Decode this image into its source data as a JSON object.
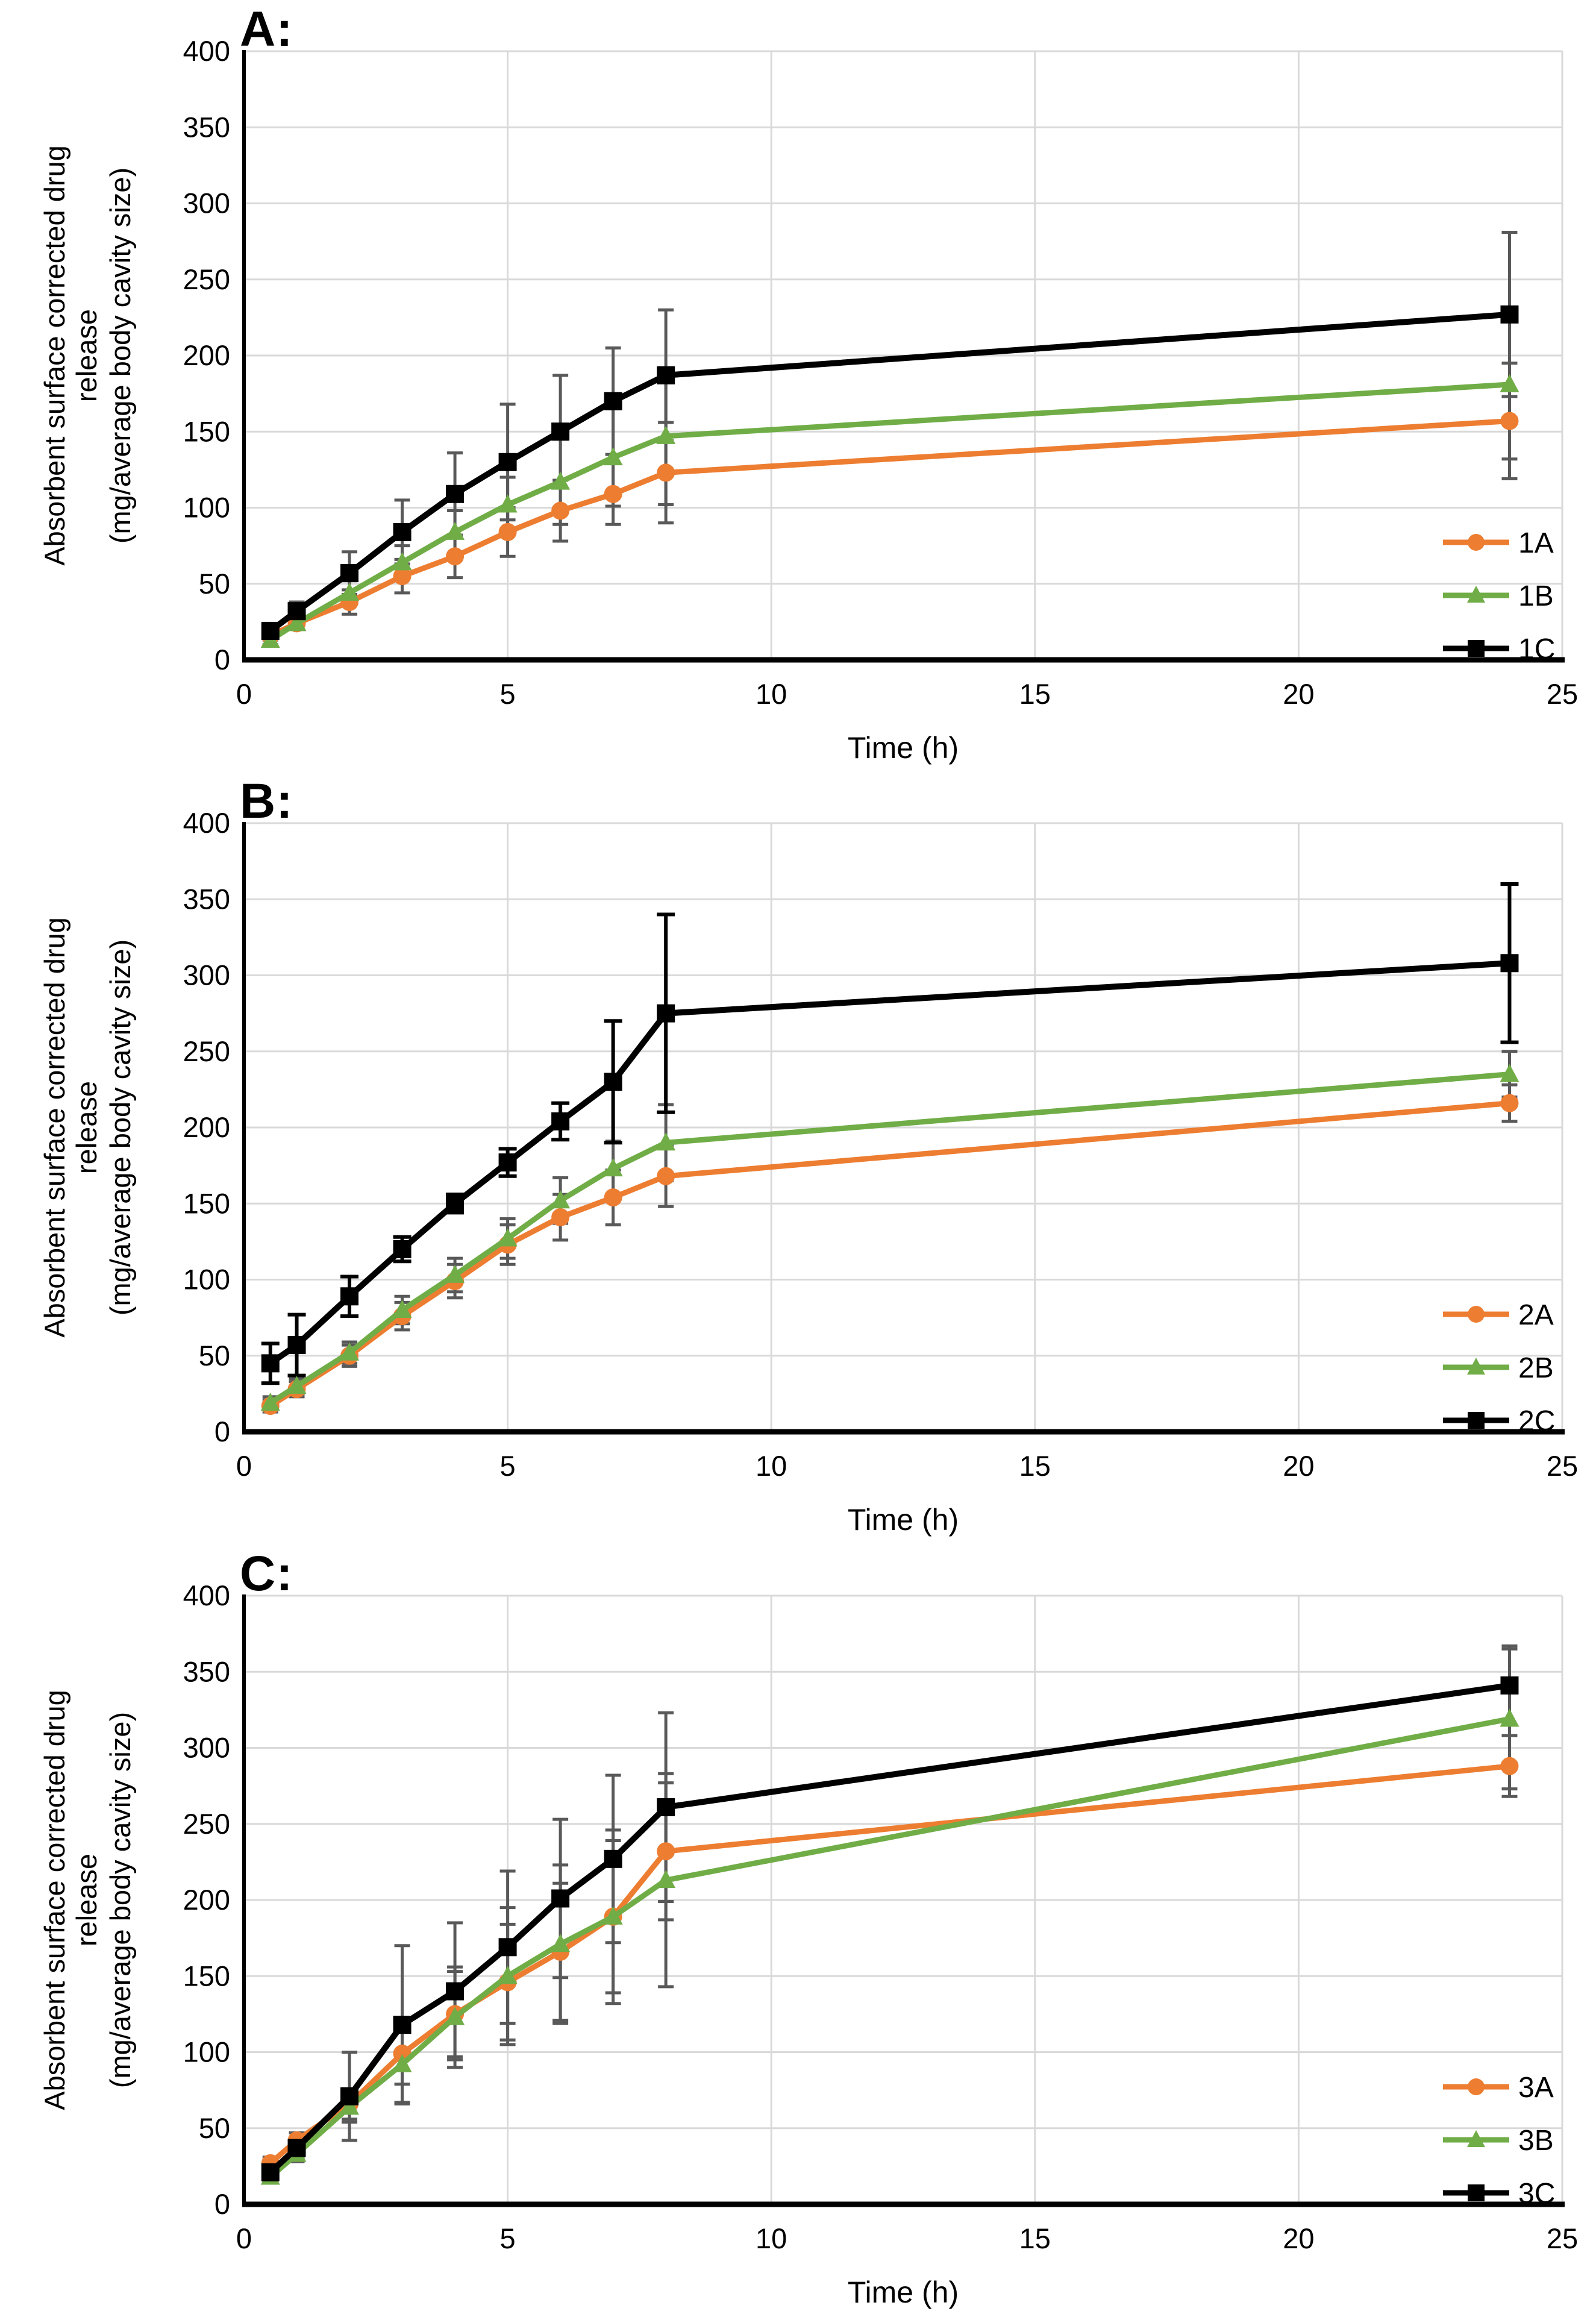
{
  "figure_background": "#FFFFFF",
  "grid_color": "#D9D9D9",
  "axis_color": "#000000",
  "chart_data": [
    {
      "type": "line",
      "title": "A:",
      "xlabel": "Time (h)",
      "ylabel_line1": "Absorbent surface corrected drug release",
      "ylabel_line2": "(mg/average body cavity size)",
      "xlim": [
        0,
        25
      ],
      "ylim": [
        0,
        400
      ],
      "xticks": [
        0,
        5,
        10,
        15,
        20,
        25
      ],
      "yticks": [
        0,
        50,
        100,
        150,
        200,
        250,
        300,
        350,
        400
      ],
      "grid": true,
      "legend_position": "inside-right-bottom",
      "x": [
        0.5,
        1,
        2,
        3,
        4,
        5,
        6,
        7,
        8,
        24
      ],
      "series": [
        {
          "name": "1A",
          "color": "#ED7D31",
          "marker": "circle",
          "error_color": "#595959",
          "values": [
            16,
            24,
            38,
            55,
            68,
            84,
            98,
            109,
            123,
            157
          ],
          "errors": [
            3,
            4,
            8,
            11,
            14,
            16,
            20,
            20,
            33,
            38
          ]
        },
        {
          "name": "1B",
          "color": "#70AD47",
          "marker": "triangle",
          "error_color": "#595959",
          "values": [
            13,
            24,
            44,
            64,
            84,
            102,
            117,
            133,
            147,
            181
          ],
          "errors": [
            3,
            4,
            8,
            11,
            14,
            18,
            28,
            32,
            45,
            49
          ]
        },
        {
          "name": "1C",
          "color": "#000000",
          "marker": "square",
          "error_color": "#595959",
          "values": [
            19,
            32,
            57,
            84,
            109,
            130,
            150,
            170,
            187,
            227
          ],
          "errors": [
            5,
            6,
            14,
            21,
            27,
            38,
            37,
            35,
            43,
            54
          ]
        }
      ]
    },
    {
      "type": "line",
      "title": "B:",
      "xlabel": "Time (h)",
      "ylabel_line1": "Absorbent surface corrected drug release",
      "ylabel_line2": "(mg/average body cavity size)",
      "xlim": [
        0,
        25
      ],
      "ylim": [
        0,
        400
      ],
      "xticks": [
        0,
        5,
        10,
        15,
        20,
        25
      ],
      "yticks": [
        0,
        50,
        100,
        150,
        200,
        250,
        300,
        350,
        400
      ],
      "grid": true,
      "legend_position": "inside-right-bottom",
      "x": [
        0.5,
        1,
        2,
        3,
        4,
        5,
        6,
        7,
        8,
        24
      ],
      "series": [
        {
          "name": "2A",
          "color": "#ED7D31",
          "marker": "circle",
          "error_color": "#595959",
          "values": [
            17,
            28,
            50,
            76,
            99,
            123,
            141,
            154,
            168,
            216
          ],
          "errors": [
            4,
            5,
            7,
            9,
            11,
            13,
            15,
            18,
            20,
            12
          ]
        },
        {
          "name": "2B",
          "color": "#70AD47",
          "marker": "triangle",
          "error_color": "#595959",
          "values": [
            19,
            30,
            52,
            80,
            103,
            127,
            152,
            173,
            190,
            235
          ],
          "errors": [
            4,
            5,
            7,
            9,
            11,
            13,
            15,
            18,
            25,
            15
          ]
        },
        {
          "name": "2C",
          "color": "#000000",
          "marker": "square",
          "error_color": "#000000",
          "values": [
            45,
            57,
            89,
            120,
            150,
            177,
            204,
            230,
            275,
            308
          ],
          "errors": [
            13,
            20,
            13,
            8,
            6,
            9,
            12,
            40,
            65,
            52
          ]
        }
      ]
    },
    {
      "type": "line",
      "title": "C:",
      "xlabel": "Time (h)",
      "ylabel_line1": "Absorbent surface corrected drug release",
      "ylabel_line2": "(mg/average body cavity size)",
      "xlim": [
        0,
        25
      ],
      "ylim": [
        0,
        400
      ],
      "xticks": [
        0,
        5,
        10,
        15,
        20,
        25
      ],
      "yticks": [
        0,
        50,
        100,
        150,
        200,
        250,
        300,
        350,
        400
      ],
      "grid": true,
      "legend_position": "inside-right-bottom",
      "x": [
        0.5,
        1,
        2,
        3,
        4,
        5,
        6,
        7,
        8,
        24
      ],
      "series": [
        {
          "name": "3A",
          "color": "#ED7D31",
          "marker": "circle",
          "error_color": "#595959",
          "values": [
            27,
            42,
            66,
            99,
            125,
            146,
            166,
            189,
            232,
            288
          ],
          "errors": [
            4,
            5,
            10,
            20,
            28,
            38,
            45,
            50,
            45,
            20
          ]
        },
        {
          "name": "3B",
          "color": "#70AD47",
          "marker": "triangle",
          "error_color": "#595959",
          "values": [
            18,
            33,
            64,
            92,
            123,
            150,
            171,
            189,
            213,
            319
          ],
          "errors": [
            4,
            5,
            10,
            25,
            33,
            45,
            52,
            57,
            70,
            46
          ]
        },
        {
          "name": "3C",
          "color": "#000000",
          "marker": "square",
          "error_color": "#595959",
          "values": [
            21,
            37,
            71,
            118,
            140,
            169,
            201,
            227,
            261,
            341
          ],
          "errors": [
            6,
            7,
            29,
            52,
            45,
            50,
            52,
            55,
            62,
            26
          ]
        }
      ]
    }
  ]
}
